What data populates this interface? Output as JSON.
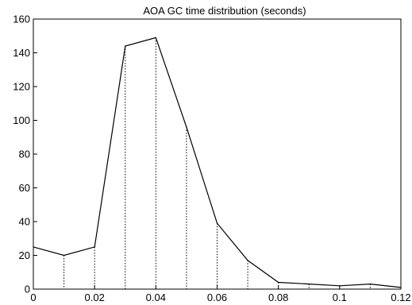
{
  "chart_data": {
    "type": "line",
    "title": "AOA GC time distribution (seconds)",
    "xlabel": "",
    "ylabel": "",
    "xlim": [
      0,
      0.12
    ],
    "ylim": [
      0,
      160
    ],
    "x_ticks": [
      0,
      0.02,
      0.04,
      0.06,
      0.08,
      0.1,
      0.12
    ],
    "x_tick_labels": [
      "0",
      "0.02",
      "0.04",
      "0.06",
      "0.08",
      "0.1",
      "0.12"
    ],
    "y_ticks": [
      0,
      20,
      40,
      60,
      80,
      100,
      120,
      140,
      160
    ],
    "y_tick_labels": [
      "0",
      "20",
      "40",
      "60",
      "80",
      "100",
      "120",
      "140",
      "160"
    ],
    "grid": false,
    "drop_lines": "dotted",
    "line_color": "#000000",
    "x": [
      0,
      0.01,
      0.02,
      0.03,
      0.04,
      0.05,
      0.06,
      0.07,
      0.08,
      0.09,
      0.1,
      0.11,
      0.12
    ],
    "y": [
      25,
      20,
      25,
      144,
      149,
      96,
      39,
      17,
      4,
      3,
      2,
      3,
      1
    ]
  }
}
